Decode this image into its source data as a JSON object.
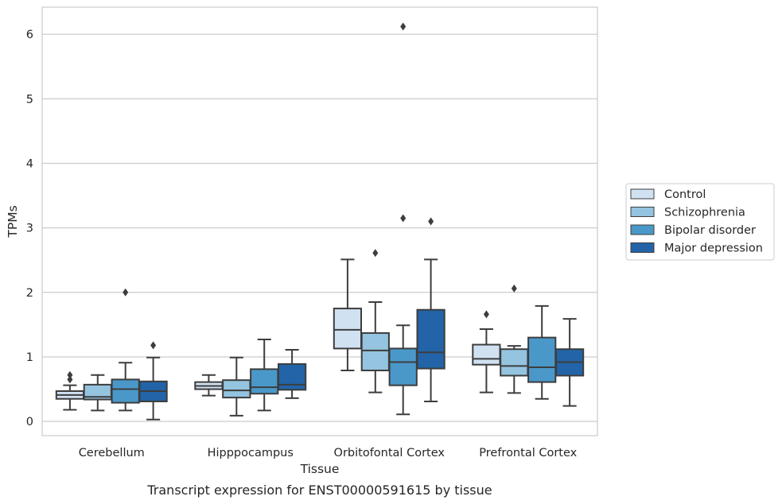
{
  "chart_data": {
    "type": "box",
    "xlabel": "Tissue",
    "ylabel": "TPMs",
    "caption": "Transcript expression for ENST00000591615 by tissue",
    "ylim": [
      -0.22,
      6.42
    ],
    "yticks": [
      0,
      1,
      2,
      3,
      4,
      5,
      6
    ],
    "grid": "horizontal",
    "legend_position": "right",
    "categories": [
      "Cerebellum",
      "Hipppocampus",
      "Orbitofontal Cortex",
      "Prefrontal Cortex"
    ],
    "series": [
      {
        "name": "Control",
        "color": "#d0e1f2",
        "boxes": [
          {
            "whislo": 0.18,
            "q1": 0.35,
            "med": 0.41,
            "q3": 0.47,
            "whishi": 0.56,
            "fliers": [
              0.65,
              0.72
            ]
          },
          {
            "whislo": 0.4,
            "q1": 0.5,
            "med": 0.55,
            "q3": 0.61,
            "whishi": 0.72,
            "fliers": []
          },
          {
            "whislo": 0.79,
            "q1": 1.13,
            "med": 1.42,
            "q3": 1.75,
            "whishi": 2.51,
            "fliers": []
          },
          {
            "whislo": 0.45,
            "q1": 0.88,
            "med": 0.97,
            "q3": 1.19,
            "whishi": 1.43,
            "fliers": [
              1.66
            ]
          }
        ]
      },
      {
        "name": "Schizophrenia",
        "color": "#94c4df",
        "boxes": [
          {
            "whislo": 0.17,
            "q1": 0.34,
            "med": 0.38,
            "q3": 0.57,
            "whishi": 0.72,
            "fliers": []
          },
          {
            "whislo": 0.09,
            "q1": 0.37,
            "med": 0.48,
            "q3": 0.64,
            "whishi": 0.99,
            "fliers": []
          },
          {
            "whislo": 0.45,
            "q1": 0.79,
            "med": 1.1,
            "q3": 1.37,
            "whishi": 1.85,
            "fliers": [
              2.61
            ]
          },
          {
            "whislo": 0.44,
            "q1": 0.71,
            "med": 0.86,
            "q3": 1.12,
            "whishi": 1.17,
            "fliers": [
              2.06
            ]
          }
        ]
      },
      {
        "name": "Bipolar disorder",
        "color": "#4a98c9",
        "boxes": [
          {
            "whislo": 0.17,
            "q1": 0.29,
            "med": 0.5,
            "q3": 0.65,
            "whishi": 0.91,
            "fliers": [
              2.0
            ]
          },
          {
            "whislo": 0.17,
            "q1": 0.43,
            "med": 0.53,
            "q3": 0.81,
            "whishi": 1.27,
            "fliers": []
          },
          {
            "whislo": 0.11,
            "q1": 0.56,
            "med": 0.92,
            "q3": 1.13,
            "whishi": 1.49,
            "fliers": [
              3.15,
              6.12
            ]
          },
          {
            "whislo": 0.35,
            "q1": 0.61,
            "med": 0.84,
            "q3": 1.3,
            "whishi": 1.79,
            "fliers": []
          }
        ]
      },
      {
        "name": "Major depression",
        "color": "#2264a7",
        "boxes": [
          {
            "whislo": 0.03,
            "q1": 0.31,
            "med": 0.47,
            "q3": 0.62,
            "whishi": 0.99,
            "fliers": [
              1.18
            ]
          },
          {
            "whislo": 0.36,
            "q1": 0.49,
            "med": 0.57,
            "q3": 0.89,
            "whishi": 1.11,
            "fliers": []
          },
          {
            "whislo": 0.31,
            "q1": 0.82,
            "med": 1.07,
            "q3": 1.73,
            "whishi": 2.51,
            "fliers": [
              3.1
            ]
          },
          {
            "whislo": 0.24,
            "q1": 0.71,
            "med": 0.92,
            "q3": 1.12,
            "whishi": 1.59,
            "fliers": []
          }
        ]
      }
    ]
  }
}
